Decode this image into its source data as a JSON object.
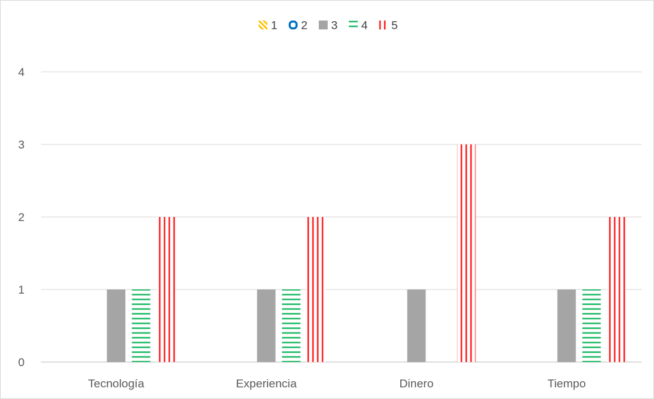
{
  "chart_data": {
    "type": "bar",
    "title": "",
    "xlabel": "",
    "ylabel": "",
    "categories": [
      "Tecnología",
      "Experiencia",
      "Dinero",
      "Tiempo"
    ],
    "series": [
      {
        "name": "1",
        "values": [
          0,
          0,
          0,
          0
        ],
        "color": "#FFC000",
        "pattern": "diagonal"
      },
      {
        "name": "2",
        "values": [
          0,
          0,
          0,
          0
        ],
        "color": "#0070C0",
        "pattern": "ring"
      },
      {
        "name": "3",
        "values": [
          1,
          1,
          1,
          1
        ],
        "color": "#A5A5A5",
        "pattern": "solid"
      },
      {
        "name": "4",
        "values": [
          1,
          1,
          0,
          1
        ],
        "color": "#00B050",
        "pattern": "horizontal"
      },
      {
        "name": "5",
        "values": [
          2,
          2,
          3,
          2
        ],
        "color": "#FF0000",
        "pattern": "vertical"
      }
    ],
    "y_ticks": [
      "0",
      "1",
      "2",
      "3",
      "4"
    ],
    "ylim": [
      0,
      4
    ],
    "grid": true,
    "legend_position": "top"
  }
}
